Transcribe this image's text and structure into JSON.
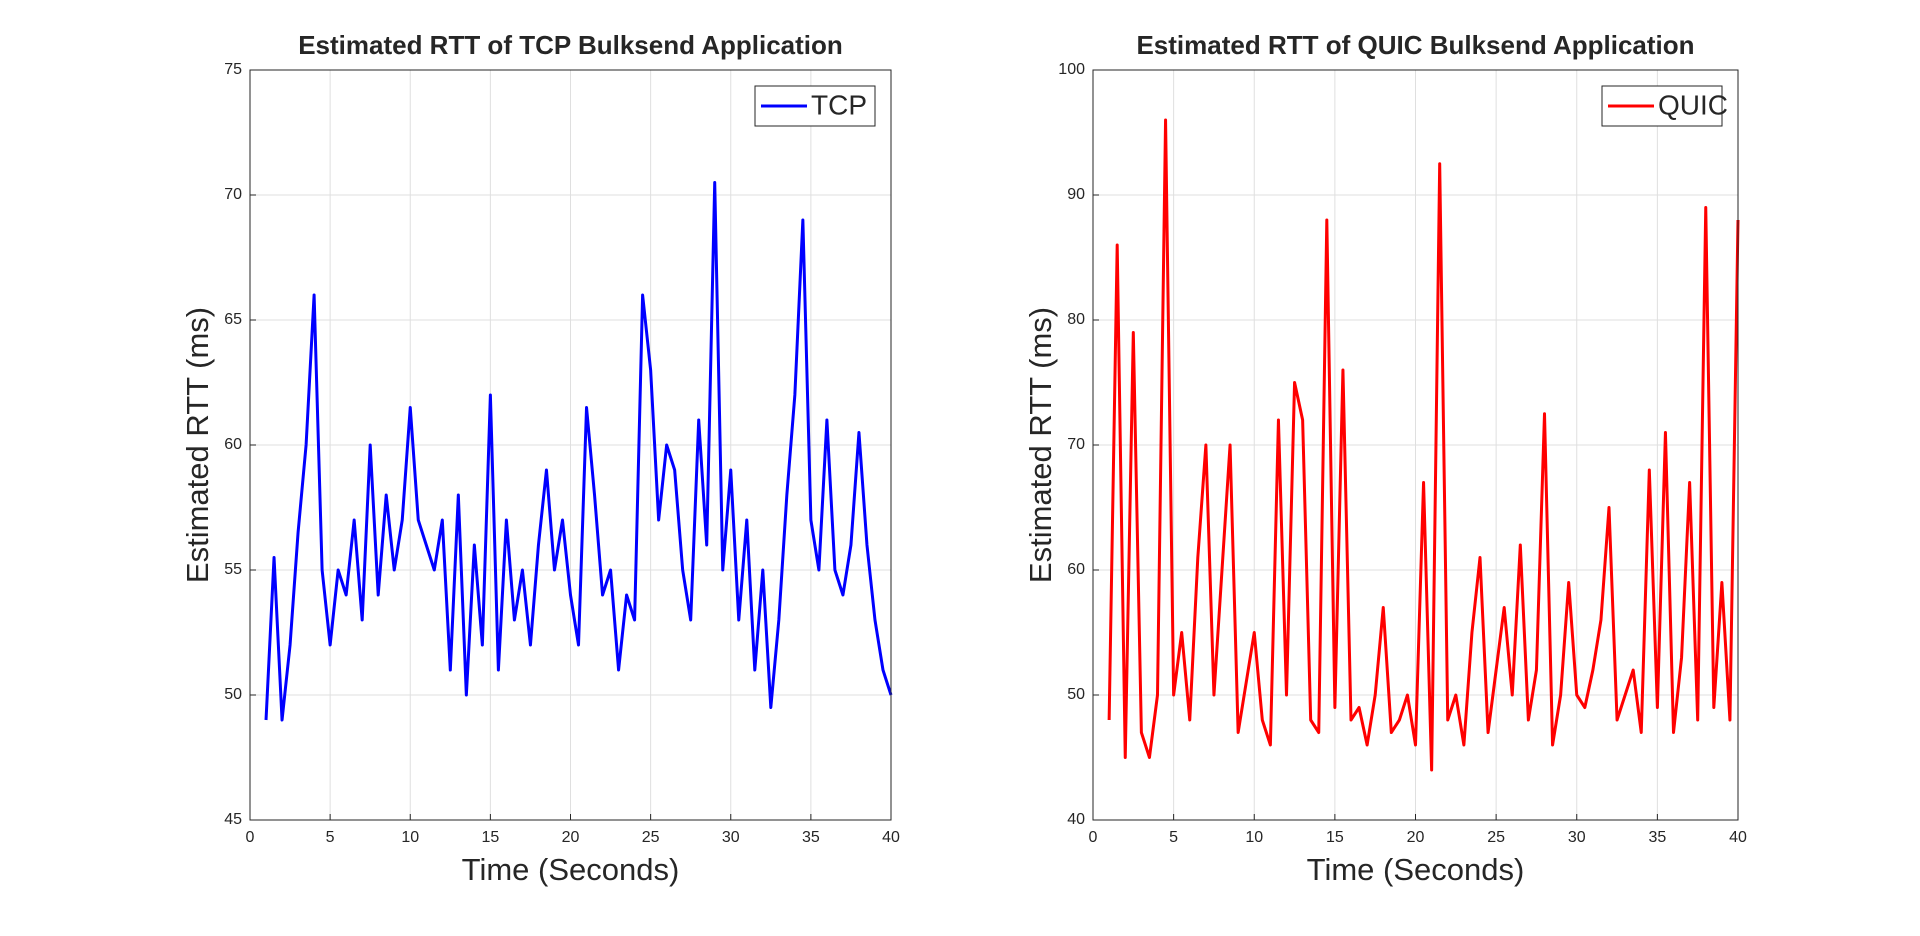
{
  "chart_data": [
    {
      "type": "line",
      "title": "Estimated RTT of TCP Bulksend Application",
      "x_label": "Time (Seconds)",
      "y_label": "Estimated RTT (ms)",
      "x": [
        1,
        1.5,
        2,
        2.5,
        3,
        3.5,
        4,
        4.5,
        5,
        5.5,
        6,
        6.5,
        7,
        7.5,
        8,
        8.5,
        9,
        9.5,
        10,
        10.5,
        11,
        11.5,
        12,
        12.5,
        13,
        13.5,
        14,
        14.5,
        15,
        15.5,
        16,
        16.5,
        17,
        17.5,
        18,
        18.5,
        19,
        19.5,
        20,
        20.5,
        21,
        21.5,
        22,
        22.5,
        23,
        23.5,
        24,
        24.5,
        25,
        25.5,
        26,
        26.5,
        27,
        27.5,
        28,
        28.5,
        29,
        29.5,
        30,
        30.5,
        31,
        31.5,
        32,
        32.5,
        33,
        33.5,
        34,
        34.5,
        35,
        35.5,
        36,
        36.5,
        37,
        37.5,
        38,
        38.5,
        39,
        39.5,
        40
      ],
      "series": [
        {
          "name": "TCP",
          "color": "#0000ff",
          "values": [
            49,
            55.5,
            49,
            52,
            56.5,
            60,
            66,
            55,
            52,
            55,
            54,
            57,
            53,
            60,
            54,
            58,
            55,
            57,
            61.5,
            57,
            56,
            55,
            57,
            51,
            58,
            50,
            56,
            52,
            62,
            51,
            57,
            53,
            55,
            52,
            56,
            59,
            55,
            57,
            54,
            52,
            61.5,
            58,
            54,
            55,
            51,
            54,
            53,
            66,
            63,
            57,
            60,
            59,
            55,
            53,
            61,
            56,
            70.5,
            55,
            59,
            53,
            57,
            51,
            55,
            49.5,
            53,
            58,
            62,
            69,
            57,
            55,
            61,
            55,
            54,
            56,
            60.5,
            56,
            53,
            51,
            50
          ]
        }
      ],
      "xlim": [
        0,
        40
      ],
      "xticks": [
        0,
        5,
        10,
        15,
        20,
        25,
        30,
        35,
        40
      ],
      "ylim": [
        45,
        75
      ],
      "yticks": [
        45,
        50,
        55,
        60,
        65,
        70,
        75
      ],
      "grid": true,
      "legend": "top-right"
    },
    {
      "type": "line",
      "title": "Estimated RTT of QUIC Bulksend Application",
      "x_label": "Time (Seconds)",
      "y_label": "Estimated RTT (ms)",
      "x": [
        1,
        1.5,
        2,
        2.5,
        3,
        3.5,
        4,
        4.5,
        5,
        5.5,
        6,
        6.5,
        7,
        7.5,
        8,
        8.5,
        9,
        9.5,
        10,
        10.5,
        11,
        11.5,
        12,
        12.5,
        13,
        13.5,
        14,
        14.5,
        15,
        15.5,
        16,
        16.5,
        17,
        17.5,
        18,
        18.5,
        19,
        19.5,
        20,
        20.5,
        21,
        21.5,
        22,
        22.5,
        23,
        23.5,
        24,
        24.5,
        25,
        25.5,
        26,
        26.5,
        27,
        27.5,
        28,
        28.5,
        29,
        29.5,
        30,
        30.5,
        31,
        31.5,
        32,
        32.5,
        33,
        33.5,
        34,
        34.5,
        35,
        35.5,
        36,
        36.5,
        37,
        37.5,
        38,
        38.5,
        39,
        39.5,
        40
      ],
      "series": [
        {
          "name": "QUIC",
          "color": "#ff0000",
          "values": [
            48,
            86,
            45,
            79,
            47,
            45,
            50,
            96,
            50,
            55,
            48,
            61,
            70,
            50,
            60,
            70,
            47,
            51,
            55,
            48,
            46,
            72,
            50,
            75,
            72,
            48,
            47,
            88,
            49,
            76,
            48,
            49,
            46,
            50,
            57,
            47,
            48,
            50,
            46,
            67,
            44,
            92.5,
            48,
            50,
            46,
            55,
            61,
            47,
            52,
            57,
            50,
            62,
            48,
            52,
            72.5,
            46,
            50,
            59,
            50,
            49,
            52,
            56,
            65,
            48,
            50,
            52,
            47,
            68,
            49,
            71,
            47,
            53,
            67,
            48,
            89,
            49,
            59,
            48,
            88
          ]
        }
      ],
      "xlim": [
        0,
        40
      ],
      "xticks": [
        0,
        5,
        10,
        15,
        20,
        25,
        30,
        35,
        40
      ],
      "ylim": [
        40,
        100
      ],
      "yticks": [
        40,
        50,
        60,
        70,
        80,
        90,
        100
      ],
      "grid": true,
      "legend": "top-right"
    }
  ]
}
